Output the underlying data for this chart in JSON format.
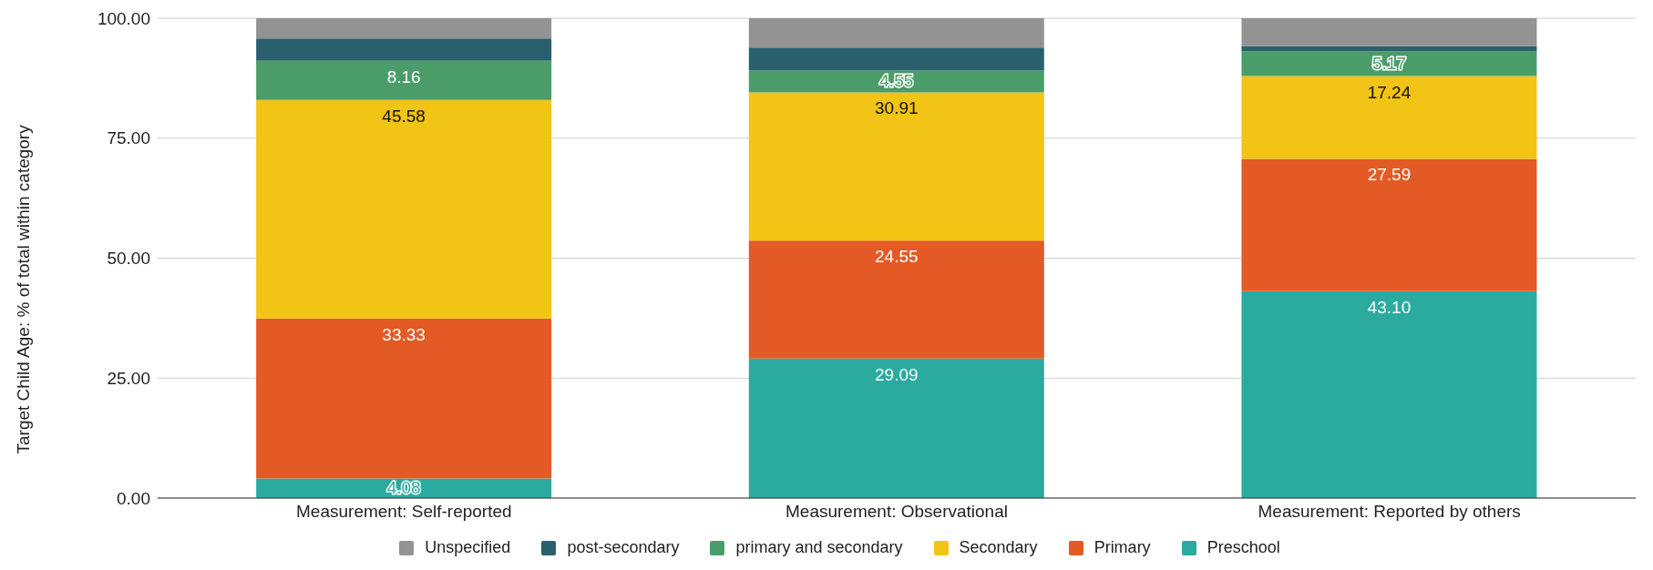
{
  "chart_data": {
    "type": "bar",
    "stacked": true,
    "ylabel": "Target Child Age: % of total within category",
    "categories": [
      "Measurement: Self-reported",
      "Measurement: Observational",
      "Measurement: Reported by others"
    ],
    "series": [
      {
        "name": "Preschool",
        "color": "#2bab9f",
        "values": [
          4.08,
          29.09,
          43.1
        ],
        "value_labels": [
          "4.08",
          "29.09",
          "43.10"
        ]
      },
      {
        "name": "Primary",
        "color": "#e35a25",
        "values": [
          33.33,
          24.55,
          27.59
        ],
        "value_labels": [
          "33.33",
          "24.55",
          "27.59"
        ]
      },
      {
        "name": "Secondary",
        "color": "#f1c415",
        "values": [
          45.58,
          30.91,
          17.24
        ],
        "value_labels": [
          "45.58",
          "30.91",
          "17.24"
        ]
      },
      {
        "name": "primary and secondary",
        "color": "#4a9d68",
        "values": [
          8.16,
          4.55,
          5.17
        ],
        "value_labels": [
          "8.16",
          "4.55",
          "5.17"
        ]
      },
      {
        "name": "post-secondary",
        "color": "#2a5f6e",
        "values": [
          4.65,
          4.8,
          1.1
        ]
      },
      {
        "name": "Unspecified",
        "color": "#939393",
        "values": [
          4.2,
          6.1,
          5.8
        ]
      }
    ],
    "ylim": [
      0,
      100
    ],
    "yticks": [
      {
        "value": 0,
        "label": "0.00"
      },
      {
        "value": 25,
        "label": "25.00"
      },
      {
        "value": 50,
        "label": "50.00"
      },
      {
        "value": 75,
        "label": "75.00"
      },
      {
        "value": 100,
        "label": "100.00"
      }
    ],
    "grid": "y",
    "legend": "bottom"
  }
}
